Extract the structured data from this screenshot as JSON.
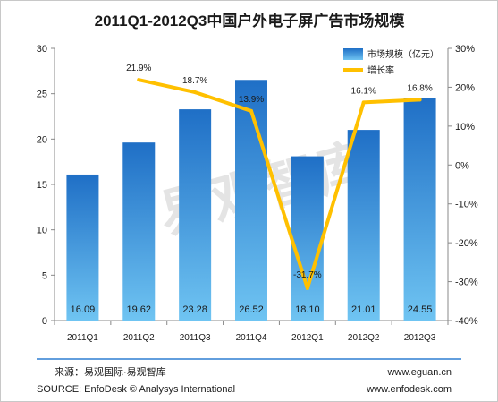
{
  "chart_data": {
    "type": "bar",
    "title": "2011Q1-2012Q3中国户外电子屏广告市场规模",
    "categories": [
      "2011Q1",
      "2011Q2",
      "2011Q3",
      "2011Q4",
      "2012Q1",
      "2012Q2",
      "2012Q3"
    ],
    "series": [
      {
        "name": "市场规模（亿元）",
        "type": "bar",
        "axis": "left",
        "values": [
          16.09,
          19.62,
          23.28,
          26.52,
          18.1,
          21.01,
          24.55
        ],
        "value_labels": [
          "16.09",
          "19.62",
          "23.28",
          "26.52",
          "18.10",
          "21.01",
          "24.55"
        ],
        "color": "#2f7fd2"
      },
      {
        "name": "增长率",
        "type": "line",
        "axis": "right",
        "values": [
          null,
          21.9,
          18.7,
          13.9,
          -31.7,
          16.1,
          16.8
        ],
        "value_labels": [
          "",
          "21.9%",
          "18.7%",
          "13.9%",
          "-31.7%",
          "16.1%",
          "16.8%"
        ],
        "color": "#ffc000"
      }
    ],
    "y_left": {
      "min": 0,
      "max": 30,
      "ticks": [
        "0",
        "5",
        "10",
        "15",
        "20",
        "25",
        "30"
      ]
    },
    "y_right": {
      "min": -40,
      "max": 30,
      "ticks": [
        "-40%",
        "-30%",
        "-20%",
        "-10%",
        "0%",
        "10%",
        "20%",
        "30%"
      ]
    },
    "grid": false,
    "legend_position": "top-right"
  },
  "watermark": "易观智库",
  "footer": {
    "source_cn": "来源：易观国际·易观智库",
    "source_en": "SOURCE:  EnfoDesk © Analysys International",
    "url1": "www.eguan.cn",
    "url2": "www.enfodesk.com"
  },
  "colors": {
    "bar_top": "#1f6fc6",
    "bar_bottom": "#6fc4f2",
    "line": "#ffc000",
    "footer_rule": "#2f7fd2"
  }
}
